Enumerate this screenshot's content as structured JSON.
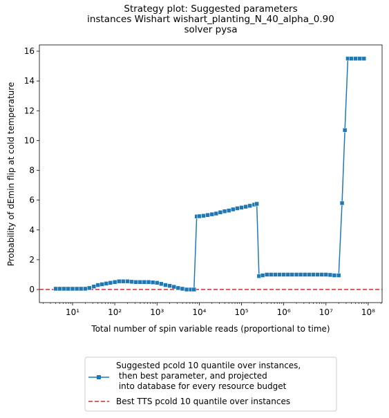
{
  "chart_data": {
    "type": "line",
    "title": "Strategy plot: Suggested parameters\ninstances Wishart wishart_planting_N_40_alpha_0.90\nsolver pysa",
    "xlabel": "Total number of spin variable reads (proportional to time)",
    "ylabel": "Probability of dEmin flip at cold temperature",
    "xscale": "log",
    "xlim": [
      1.64,
      213000000
    ],
    "ylim": [
      -0.88,
      16.42
    ],
    "xticks": [
      {
        "value": 10,
        "label": "10¹"
      },
      {
        "value": 100,
        "label": "10²"
      },
      {
        "value": 1000,
        "label": "10³"
      },
      {
        "value": 10000,
        "label": "10⁴"
      },
      {
        "value": 100000,
        "label": "10⁵"
      },
      {
        "value": 1000000,
        "label": "10⁶"
      },
      {
        "value": 10000000,
        "label": "10⁷"
      },
      {
        "value": 100000000,
        "label": "10⁸"
      }
    ],
    "yticks": [
      0,
      2,
      4,
      6,
      8,
      10,
      12,
      14,
      16
    ],
    "grid": false,
    "legend": "lower center outside",
    "x": [
      4,
      5,
      6.3,
      7.9,
      10,
      12.6,
      15.8,
      20,
      25,
      32,
      40,
      50,
      63,
      79,
      100,
      126,
      158,
      200,
      251,
      316,
      398,
      501,
      631,
      794,
      1000,
      1259,
      1585,
      1995,
      2512,
      3162,
      3981,
      5012,
      6310,
      7500,
      8700,
      10000,
      12600,
      15800,
      20000,
      25100,
      31600,
      39800,
      50100,
      63100,
      79400,
      100000,
      126000,
      158000,
      200000,
      230000,
      260000,
      316000,
      398000,
      501000,
      631000,
      794000,
      1000000,
      1260000,
      1580000,
      2000000,
      2510000,
      3160000,
      3980000,
      5010000,
      6310000,
      7940000,
      10000000,
      12600000,
      15800000,
      20000000,
      24000000,
      28000000,
      33000000,
      39800000,
      50100000,
      63100000,
      79400000
    ],
    "series": [
      {
        "name": "Suggested pcold 10 quantile over instances,\n then best parameter, and projected\n into database for every resource budget",
        "color": "#1f77b4",
        "values": [
          0.05,
          0.05,
          0.05,
          0.05,
          0.05,
          0.05,
          0.05,
          0.05,
          0.1,
          0.2,
          0.3,
          0.35,
          0.4,
          0.45,
          0.5,
          0.55,
          0.55,
          0.55,
          0.52,
          0.5,
          0.5,
          0.5,
          0.5,
          0.48,
          0.45,
          0.38,
          0.3,
          0.25,
          0.18,
          0.1,
          0.05,
          0.0,
          0.0,
          0.0,
          4.9,
          4.92,
          4.95,
          5.0,
          5.05,
          5.1,
          5.18,
          5.25,
          5.3,
          5.38,
          5.45,
          5.5,
          5.56,
          5.62,
          5.7,
          5.75,
          0.9,
          0.95,
          1.0,
          1.0,
          1.0,
          1.0,
          1.0,
          1.0,
          1.0,
          1.0,
          1.0,
          1.0,
          1.0,
          1.0,
          1.0,
          1.0,
          1.0,
          0.98,
          0.95,
          0.95,
          5.8,
          10.7,
          15.5,
          15.5,
          15.5,
          15.5,
          15.5
        ]
      }
    ],
    "hline": {
      "name": "Best TTS pcold 10 quantile over instances",
      "color": "#d62728",
      "value": 0
    }
  }
}
